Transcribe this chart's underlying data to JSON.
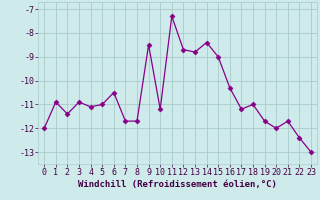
{
  "x": [
    0,
    1,
    2,
    3,
    4,
    5,
    6,
    7,
    8,
    9,
    10,
    11,
    12,
    13,
    14,
    15,
    16,
    17,
    18,
    19,
    20,
    21,
    22,
    23
  ],
  "y": [
    -12.0,
    -10.9,
    -11.4,
    -10.9,
    -11.1,
    -11.0,
    -10.5,
    -11.7,
    -11.7,
    -8.5,
    -11.2,
    -7.3,
    -8.7,
    -8.8,
    -8.4,
    -9.0,
    -10.3,
    -11.2,
    -11.0,
    -11.7,
    -12.0,
    -11.7,
    -12.4,
    -13.0
  ],
  "line_color": "#880088",
  "marker": "D",
  "markersize": 2.5,
  "linewidth": 0.9,
  "xlabel": "Windchill (Refroidissement éolien,°C)",
  "xlabel_fontsize": 6.5,
  "ylim": [
    -13.5,
    -6.7
  ],
  "xlim": [
    -0.5,
    23.5
  ],
  "yticks": [
    -13,
    -12,
    -11,
    -10,
    -9,
    -8,
    -7
  ],
  "xticks": [
    0,
    1,
    2,
    3,
    4,
    5,
    6,
    7,
    8,
    9,
    10,
    11,
    12,
    13,
    14,
    15,
    16,
    17,
    18,
    19,
    20,
    21,
    22,
    23
  ],
  "background_color": "#ceeaea",
  "grid_color": "#aacccc",
  "tick_fontsize": 6.0
}
